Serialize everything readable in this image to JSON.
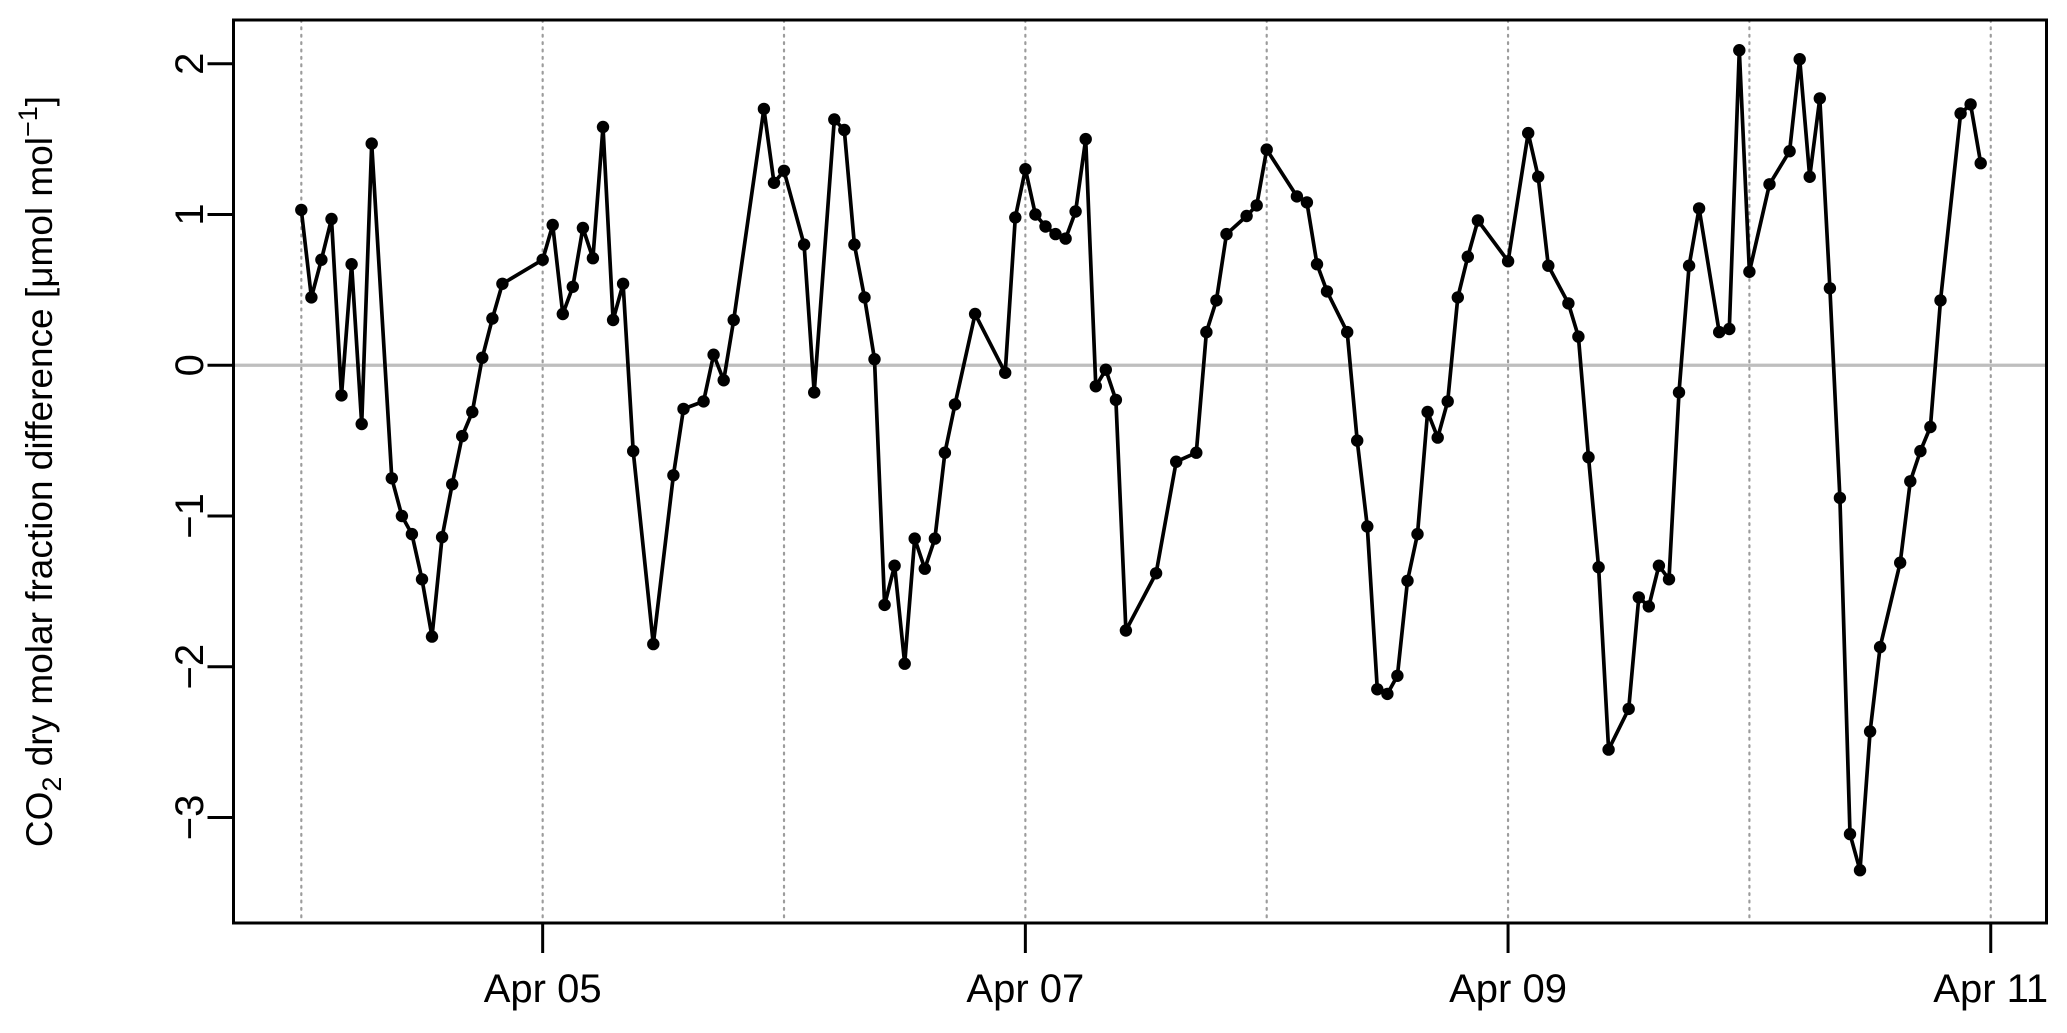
{
  "chart_data": {
    "type": "line",
    "title": "",
    "xlabel": "",
    "ylabel": "CO2 dry molar fraction difference [μmol mol−1]",
    "ylabel_parts": [
      {
        "t": "CO"
      },
      {
        "t": "2",
        "style": "sub"
      },
      {
        "t": " dry molar fraction difference [μmol mol"
      },
      {
        "t": "−1",
        "style": "sup"
      },
      {
        "t": "]"
      }
    ],
    "x_unit": "hours since Apr 04 00:00",
    "xlim_days": [
      -0.281,
      7.231
    ],
    "ylim": [
      -3.7,
      2.29
    ],
    "grid": "vertical-dotted-daily",
    "grid_days": [
      0,
      1,
      2,
      3,
      4,
      5,
      6,
      7
    ],
    "zero_line": true,
    "legend": "none",
    "x_ticks": [
      {
        "day": 1,
        "label": "Apr 05"
      },
      {
        "day": 3,
        "label": "Apr 07"
      },
      {
        "day": 5,
        "label": "Apr 09"
      },
      {
        "day": 7,
        "label": "Apr 11"
      }
    ],
    "y_ticks": [
      2,
      1,
      0,
      -1,
      -2,
      -3
    ],
    "series": [
      {
        "name": "CO2 dry molar fraction difference",
        "color": "#000000",
        "marker": "filled-circle",
        "points": [
          [
            0,
            1.03
          ],
          [
            1,
            0.45
          ],
          [
            2,
            0.7
          ],
          [
            3,
            0.97
          ],
          [
            4,
            -0.2
          ],
          [
            5,
            0.67
          ],
          [
            6,
            -0.39
          ],
          [
            7,
            1.47
          ],
          [
            9,
            -0.75
          ],
          [
            10,
            -1.0
          ],
          [
            11,
            -1.12
          ],
          [
            12,
            -1.42
          ],
          [
            13,
            -1.8
          ],
          [
            14,
            -1.14
          ],
          [
            15,
            -0.79
          ],
          [
            16,
            -0.47
          ],
          [
            17,
            -0.31
          ],
          [
            18,
            0.05
          ],
          [
            19,
            0.31
          ],
          [
            20,
            0.54
          ],
          [
            24,
            0.7
          ],
          [
            25,
            0.93
          ],
          [
            26,
            0.34
          ],
          [
            27,
            0.52
          ],
          [
            28,
            0.91
          ],
          [
            29,
            0.71
          ],
          [
            30,
            1.58
          ],
          [
            31,
            0.3
          ],
          [
            32,
            0.54
          ],
          [
            33,
            -0.57
          ],
          [
            35,
            -1.85
          ],
          [
            37,
            -0.73
          ],
          [
            38,
            -0.29
          ],
          [
            40,
            -0.24
          ],
          [
            41,
            0.07
          ],
          [
            42,
            -0.1
          ],
          [
            43,
            0.3
          ],
          [
            46,
            1.7
          ],
          [
            47,
            1.21
          ],
          [
            48,
            1.29
          ],
          [
            50,
            0.8
          ],
          [
            51,
            -0.18
          ],
          [
            53,
            1.63
          ],
          [
            54,
            1.56
          ],
          [
            55,
            0.8
          ],
          [
            56,
            0.45
          ],
          [
            57,
            0.04
          ],
          [
            58,
            -1.59
          ],
          [
            59,
            -1.33
          ],
          [
            60,
            -1.98
          ],
          [
            61,
            -1.15
          ],
          [
            62,
            -1.35
          ],
          [
            63,
            -1.15
          ],
          [
            64,
            -0.58
          ],
          [
            65,
            -0.26
          ],
          [
            67,
            0.34
          ],
          [
            70,
            -0.05
          ],
          [
            71,
            0.98
          ],
          [
            72,
            1.3
          ],
          [
            73,
            1.0
          ],
          [
            74,
            0.92
          ],
          [
            75,
            0.87
          ],
          [
            76,
            0.84
          ],
          [
            77,
            1.02
          ],
          [
            78,
            1.5
          ],
          [
            79,
            -0.14
          ],
          [
            80,
            -0.03
          ],
          [
            81,
            -0.23
          ],
          [
            82,
            -1.76
          ],
          [
            85,
            -1.38
          ],
          [
            87,
            -0.64
          ],
          [
            89,
            -0.58
          ],
          [
            90,
            0.22
          ],
          [
            91,
            0.43
          ],
          [
            92,
            0.87
          ],
          [
            94,
            0.99
          ],
          [
            95,
            1.06
          ],
          [
            96,
            1.43
          ],
          [
            99,
            1.12
          ],
          [
            100,
            1.08
          ],
          [
            101,
            0.67
          ],
          [
            102,
            0.49
          ],
          [
            104,
            0.22
          ],
          [
            105,
            -0.5
          ],
          [
            106,
            -1.07
          ],
          [
            107,
            -2.15
          ],
          [
            108,
            -2.18
          ],
          [
            109,
            -2.06
          ],
          [
            110,
            -1.43
          ],
          [
            111,
            -1.12
          ],
          [
            112,
            -0.31
          ],
          [
            113,
            -0.48
          ],
          [
            114,
            -0.24
          ],
          [
            115,
            0.45
          ],
          [
            116,
            0.72
          ],
          [
            117,
            0.96
          ],
          [
            120,
            0.69
          ],
          [
            122,
            1.54
          ],
          [
            123,
            1.25
          ],
          [
            124,
            0.66
          ],
          [
            126,
            0.41
          ],
          [
            127,
            0.19
          ],
          [
            128,
            -0.61
          ],
          [
            129,
            -1.34
          ],
          [
            130,
            -2.55
          ],
          [
            132,
            -2.28
          ],
          [
            133,
            -1.54
          ],
          [
            134,
            -1.6
          ],
          [
            135,
            -1.33
          ],
          [
            136,
            -1.42
          ],
          [
            137,
            -0.18
          ],
          [
            138,
            0.66
          ],
          [
            139,
            1.04
          ],
          [
            141,
            0.22
          ],
          [
            142,
            0.24
          ],
          [
            143,
            2.09
          ],
          [
            144,
            0.62
          ],
          [
            146,
            1.2
          ],
          [
            148,
            1.42
          ],
          [
            149,
            2.03
          ],
          [
            150,
            1.25
          ],
          [
            151,
            1.77
          ],
          [
            152,
            0.51
          ],
          [
            153,
            -0.88
          ],
          [
            154,
            -3.11
          ],
          [
            155,
            -3.35
          ],
          [
            156,
            -2.43
          ],
          [
            157,
            -1.87
          ],
          [
            159,
            -1.31
          ],
          [
            160,
            -0.77
          ],
          [
            161,
            -0.57
          ],
          [
            162,
            -0.41
          ],
          [
            163,
            0.43
          ],
          [
            165,
            1.67
          ],
          [
            166,
            1.73
          ],
          [
            167,
            1.34
          ]
        ]
      }
    ]
  },
  "style": {
    "background": "#ffffff",
    "line_color": "#000000",
    "axis_color": "#000000",
    "text_color": "#000000",
    "zero_line_color": "#bebebe",
    "grid_color": "#9c9c9c"
  }
}
